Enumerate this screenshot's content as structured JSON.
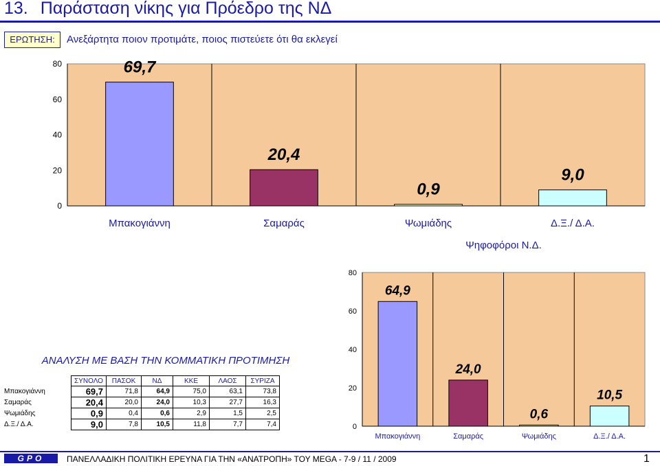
{
  "header": {
    "number": "13.",
    "title": "Παράσταση νίκης για Πρόεδρο της ΝΔ"
  },
  "question": {
    "label": "ΕΡΩΤΗΣΗ:",
    "text": "Ανεξάρτητα ποιον προτιμάτε, ποιος πιστεύετε ότι θα εκλεγεί"
  },
  "chart_data": [
    {
      "type": "bar",
      "title": "",
      "categories": [
        "Μπακογιάννη",
        "Σαμαράς",
        "Ψωμιάδης",
        "Δ.Ξ./ Δ.Α."
      ],
      "values": [
        69.7,
        20.4,
        0.9,
        9.0
      ],
      "data_labels": [
        "69,7",
        "20,4",
        "0,9",
        "9,0"
      ],
      "colors": [
        "#9999ff",
        "#993366",
        "#ffffcc",
        "#ccffff"
      ],
      "plot_background": "#f5c99a",
      "yticks": [
        "0",
        "20",
        "40",
        "60",
        "80"
      ],
      "ylim": [
        0,
        80
      ],
      "grid": "vertical"
    },
    {
      "type": "bar",
      "title": "Ψηφοφόροι Ν.Δ.",
      "categories": [
        "Μπακογιάννη",
        "Σαμαράς",
        "Ψωμιάδης",
        "Δ.Ξ./ Δ.Α."
      ],
      "values": [
        64.9,
        24.0,
        0.6,
        10.5
      ],
      "data_labels": [
        "64,9",
        "24,0",
        "0,6",
        "10,5"
      ],
      "colors": [
        "#9999ff",
        "#993366",
        "#ffffcc",
        "#ccffff"
      ],
      "plot_background": "#f5c99a",
      "yticks": [
        "0",
        "20",
        "40",
        "60",
        "80"
      ],
      "ylim": [
        0,
        80
      ],
      "grid": "vertical"
    }
  ],
  "analysis": {
    "title": "ΑΝΑΛΥΣΗ ΜΕ ΒΑΣΗ ΤΗΝ ΚΟΜΜΑΤΙΚΗ ΠΡΟΤΙΜΗΣΗ",
    "columns": [
      "ΣΥΝΟΛΟ",
      "ΠΑΣΟΚ",
      "ΝΔ",
      "ΚΚΕ",
      "ΛΑΟΣ",
      "ΣΥΡΙΖΑ"
    ],
    "rows": [
      {
        "label": "Μπακογιάννη",
        "values": [
          "69,7",
          "71,8",
          "64,9",
          "75,0",
          "63,1",
          "73,8"
        ]
      },
      {
        "label": "Σαμαράς",
        "values": [
          "20,4",
          "20,0",
          "24,0",
          "10,3",
          "27,7",
          "16,3"
        ]
      },
      {
        "label": "Ψωμιάδης",
        "values": [
          "0,9",
          "0,4",
          "0,6",
          "2,9",
          "1,5",
          "2,5"
        ]
      },
      {
        "label": "Δ.Ξ./ Δ.Α.",
        "values": [
          "9,0",
          "7,8",
          "10,5",
          "11,8",
          "7,7",
          "7,4"
        ]
      }
    ]
  },
  "footer": {
    "logo": "GPO",
    "text": "ΠΑΝΕΛΛΑΔΙΚΗ ΠΟΛΙΤΙΚΗ ΕΡΕΥΝΑ ΓΙΑ ΤΗΝ «ΑΝΑΤΡΟΠΗ» ΤΟΥ MEGA  -  7-9  / 11 / 2009",
    "page": "1"
  }
}
